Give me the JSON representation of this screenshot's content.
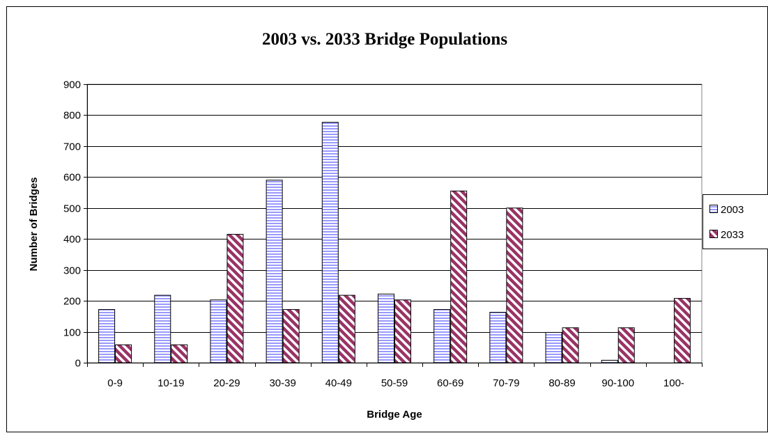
{
  "chart_data": {
    "type": "bar",
    "title": "2003 vs. 2033 Bridge Populations",
    "xlabel": "Bridge Age",
    "ylabel": "Number of Bridges",
    "categories": [
      "0-9",
      "10-19",
      "20-29",
      "30-39",
      "40-49",
      "50-59",
      "60-69",
      "70-79",
      "80-89",
      "90-100",
      "100-"
    ],
    "series": [
      {
        "name": "2003",
        "values": [
          172,
          218,
          203,
          590,
          777,
          222,
          172,
          163,
          98,
          8,
          0
        ],
        "color": "#9999ff",
        "pattern": "horizontal-stripes"
      },
      {
        "name": "2033",
        "values": [
          58,
          58,
          415,
          172,
          218,
          203,
          555,
          500,
          113,
          113,
          208
        ],
        "color": "#993366",
        "pattern": "diagonal-stripes"
      }
    ],
    "ylim": [
      0,
      900
    ],
    "yticks": [
      0,
      100,
      200,
      300,
      400,
      500,
      600,
      700,
      800,
      900
    ],
    "grid": true,
    "legend_position": "right"
  }
}
